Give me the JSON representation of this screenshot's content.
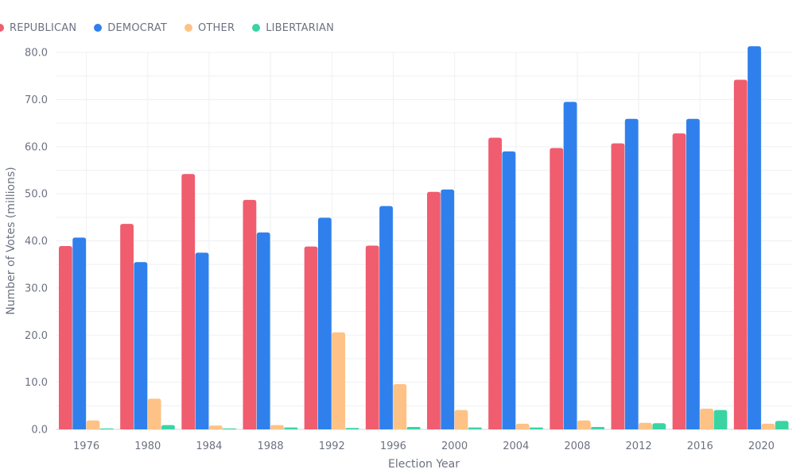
{
  "chart_data": {
    "type": "bar",
    "xlabel": "Election Year",
    "ylabel": "Number of Votes (millions)",
    "ylim": [
      0,
      80
    ],
    "y_ticks": [
      "0.0",
      "10.0",
      "20.0",
      "30.0",
      "40.0",
      "50.0",
      "60.0",
      "70.0",
      "80.0"
    ],
    "grid": true,
    "legend_position": "top-left",
    "categories": [
      "1976",
      "1980",
      "1984",
      "1988",
      "1992",
      "1996",
      "2000",
      "2004",
      "2008",
      "2012",
      "2016",
      "2020"
    ],
    "series": [
      {
        "name": "REPUBLICAN",
        "color": "#f05d6e",
        "values": [
          38.9,
          43.6,
          54.2,
          48.7,
          38.8,
          39.0,
          50.4,
          61.9,
          59.7,
          60.7,
          62.8,
          74.2
        ]
      },
      {
        "name": "DEMOCRAT",
        "color": "#2f80ed",
        "values": [
          40.7,
          35.5,
          37.5,
          41.8,
          44.9,
          47.4,
          50.9,
          59.0,
          69.5,
          65.9,
          65.9,
          81.3
        ]
      },
      {
        "name": "OTHER",
        "color": "#fec286",
        "values": [
          1.9,
          6.5,
          0.8,
          0.9,
          20.6,
          9.6,
          4.1,
          1.2,
          1.9,
          1.4,
          4.4,
          1.2
        ]
      },
      {
        "name": "LIBERTARIAN",
        "color": "#3ad4a3",
        "values": [
          0.2,
          0.9,
          0.2,
          0.4,
          0.3,
          0.5,
          0.4,
          0.4,
          0.5,
          1.3,
          4.1,
          1.8
        ]
      }
    ]
  }
}
